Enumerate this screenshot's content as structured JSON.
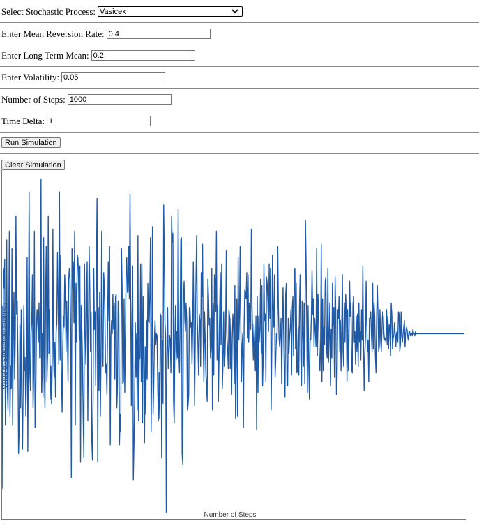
{
  "form": {
    "process_label": "Select Stochastic Process:",
    "process_value": "Vasicek",
    "mean_reversion_label": "Enter Mean Reversion Rate:",
    "mean_reversion_value": "0.4",
    "long_term_mean_label": "Enter Long Term Mean:",
    "long_term_mean_value": "0.2",
    "volatility_label": "Enter Volatility:",
    "volatility_value": "0.05",
    "steps_label": "Number of Steps:",
    "steps_value": "1000",
    "time_delta_label": "Time Delta:",
    "time_delta_value": "1"
  },
  "buttons": {
    "run": "Run Simulation",
    "clear": "Clear Simulation"
  },
  "chart_data": {
    "type": "line",
    "xlabel": "Number of Steps",
    "ylabel": "Value of Stochastic Process",
    "line_color": "#1f5aa6",
    "n_points": 700,
    "series": [
      {
        "values": [
          0.213,
          0.129,
          0.23,
          0.221,
          0.234,
          0.158,
          0.187,
          0.243,
          0.175,
          0.165,
          0.201,
          0.247,
          0.162,
          0.185,
          0.175,
          0.239,
          0.158,
          0.201,
          0.219,
          0.179,
          0.198,
          0.254,
          0.209,
          0.215,
          0.189,
          0.145,
          0.157,
          0.204,
          0.166,
          0.211,
          0.168,
          0.147,
          0.177,
          0.213,
          0.183,
          0.189,
          0.162,
          0.181,
          0.235,
          0.146,
          0.203,
          0.265,
          0.182,
          0.174,
          0.2,
          0.206,
          0.227,
          0.166,
          0.182,
          0.247,
          0.157,
          0.168,
          0.2,
          0.211,
          0.208,
          0.196,
          0.214,
          0.189,
          0.189,
          0.271,
          0.173,
          0.2,
          0.171,
          0.244,
          0.182,
          0.166,
          0.218,
          0.24,
          0.178,
          0.19,
          0.254,
          0.191,
          0.211,
          0.17,
          0.185,
          0.168,
          0.186,
          0.248,
          0.191,
          0.18,
          0.196,
          0.171,
          0.201,
          0.205,
          0.237,
          0.217,
          0.186,
          0.265,
          0.188,
          0.236,
          0.184,
          0.164,
          0.193,
          0.208,
          0.203,
          0.227,
          0.215,
          0.192,
          0.215,
          0.201,
          0.178,
          0.225,
          0.23,
          0.225,
          0.202,
          0.134,
          0.239,
          0.221,
          0.233,
          0.205,
          0.247,
          0.158,
          0.223,
          0.196,
          0.236,
          0.235,
          0.226,
          0.197,
          0.231,
          0.141,
          0.213,
          0.202,
          0.186,
          0.161,
          0.143,
          0.232,
          0.201,
          0.186,
          0.212,
          0.233,
          0.16,
          0.205,
          0.24,
          0.22,
          0.192,
          0.21,
          0.151,
          0.142,
          0.17,
          0.23,
          0.202,
          0.21,
          0.176,
          0.23,
          0.262,
          0.141,
          0.212,
          0.174,
          0.219,
          0.162,
          0.189,
          0.247,
          0.189,
          0.185,
          0.228,
          0.222,
          0.206,
          0.182,
          0.186,
          0.172,
          0.205,
          0.233,
          0.206,
          0.24,
          0.149,
          0.199,
          0.206,
          0.2,
          0.218,
          0.202,
          0.214,
          0.179,
          0.217,
          0.218,
          0.166,
          0.176,
          0.215,
          0.209,
          0.149,
          0.163,
          0.155,
          0.239,
          0.222,
          0.177,
          0.178,
          0.216,
          0.173,
          0.199,
          0.227,
          0.235,
          0.219,
          0.219,
          0.24,
          0.216,
          0.264,
          0.218,
          0.167,
          0.207,
          0.231,
          0.133,
          0.149,
          0.17,
          0.205,
          0.18,
          0.2,
          0.165,
          0.245,
          0.16,
          0.188,
          0.189,
          0.232,
          0.178,
          0.232,
          0.159,
          0.217,
          0.191,
          0.15,
          0.194,
          0.163,
          0.206,
          0.179,
          0.223,
          0.206,
          0.205,
          0.218,
          0.244,
          0.155,
          0.188,
          0.249,
          0.163,
          0.177,
          0.198,
          0.206,
          0.195,
          0.2,
          0.199,
          0.176,
          0.16,
          0.182,
          0.161,
          0.209,
          0.208,
          0.143,
          0.197,
          0.168,
          0.259,
          0.236,
          0.205,
          0.199,
          0.118,
          0.19,
          0.212,
          0.184,
          0.191,
          0.199,
          0.197,
          0.182,
          0.254,
          0.242,
          0.246,
          0.169,
          0.159,
          0.197,
          0.213,
          0.188,
          0.201,
          0.189,
          0.257,
          0.192,
          0.182,
          0.207,
          0.243,
          0.244,
          0.145,
          0.14,
          0.217,
          0.224,
          0.207,
          0.201,
          0.214,
          0.206,
          0.165,
          0.167,
          0.172,
          0.212,
          0.211,
          0.203,
          0.205,
          0.186,
          0.202,
          0.233,
          0.198,
          0.167,
          0.199,
          0.224,
          0.245,
          0.207,
          0.195,
          0.181,
          0.209,
          0.206,
          0.185,
          0.228,
          0.217,
          0.241,
          0.196,
          0.178,
          0.21,
          0.198,
          0.182,
          0.176,
          0.169,
          0.225,
          0.217,
          0.204,
          0.207,
          0.189,
          0.193,
          0.23,
          0.165,
          0.214,
          0.181,
          0.227,
          0.225,
          0.21,
          0.247,
          0.188,
          0.213,
          0.169,
          0.19,
          0.213,
          0.228,
          0.195,
          0.232,
          0.175,
          0.186,
          0.21,
          0.185,
          0.19,
          0.202,
          0.238,
          0.198,
          0.193,
          0.184,
          0.211,
          0.208,
          0.184,
          0.207,
          0.172,
          0.198,
          0.209,
          0.202,
          0.177,
          0.222,
          0.161,
          0.19,
          0.216,
          0.162,
          0.235,
          0.197,
          0.209,
          0.24,
          0.203,
          0.178,
          0.195,
          0.2,
          0.157,
          0.203,
          0.22,
          0.219,
          0.216,
          0.228,
          0.198,
          0.227,
          0.196,
          0.214,
          0.206,
          0.202,
          0.248,
          0.212,
          0.2,
          0.188,
          0.204,
          0.196,
          0.183,
          0.208,
          0.156,
          0.217,
          0.173,
          0.208,
          0.196,
          0.202,
          0.225,
          0.191,
          0.222,
          0.176,
          0.189,
          0.232,
          0.206,
          0.209,
          0.178,
          0.226,
          0.223,
          0.215,
          0.201,
          0.232,
          0.207,
          0.23,
          0.165,
          0.193,
          0.236,
          0.209,
          0.203,
          0.227,
          0.18,
          0.188,
          0.2,
          0.196,
          0.24,
          0.212,
          0.198,
          0.194,
          0.2,
          0.207,
          0.177,
          0.203,
          0.221,
          0.2,
          0.182,
          0.171,
          0.218,
          0.223,
          0.176,
          0.176,
          0.207,
          0.191,
          0.199,
          0.203,
          0.211,
          0.181,
          0.212,
          0.217,
          0.19,
          0.229,
          0.23,
          0.193,
          0.223,
          0.182,
          0.183,
          0.203,
          0.181,
          0.213,
          0.227,
          0.189,
          0.176,
          0.215,
          0.201,
          0.185,
          0.214,
          0.177,
          0.252,
          0.233,
          0.205,
          0.173,
          0.213,
          0.186,
          0.17,
          0.198,
          0.197,
          0.208,
          0.229,
          0.209,
          0.216,
          0.194,
          0.207,
          0.202,
          0.194,
          0.239,
          0.19,
          0.218,
          0.207,
          0.186,
          0.183,
          0.197,
          0.241,
          0.178,
          0.216,
          0.183,
          0.203,
          0.195,
          0.224,
          0.226,
          0.193,
          0.189,
          0.23,
          0.187,
          0.199,
          0.214,
          0.176,
          0.202,
          0.189,
          0.223,
          0.204,
          0.212,
          0.18,
          0.226,
          0.21,
          0.172,
          0.179,
          0.211,
          0.207,
          0.217,
          0.192,
          0.206,
          0.183,
          0.203,
          0.227,
          0.192,
          0.185,
          0.214,
          0.196,
          0.218,
          0.21,
          0.178,
          0.211,
          0.183,
          0.197,
          0.224,
          0.208,
          0.214,
          0.184,
          0.182,
          0.213,
          0.217,
          0.196,
          0.201,
          0.186,
          0.208,
          0.192,
          0.209,
          0.185,
          0.214,
          0.196,
          0.201,
          0.188,
          0.211,
          0.197,
          0.231,
          0.197,
          0.174,
          0.19,
          0.198,
          0.224,
          0.204,
          0.192,
          0.197,
          0.178,
          0.207,
          0.207,
          0.21,
          0.2,
          0.192,
          0.223,
          0.193,
          0.214,
          0.208,
          0.19,
          0.182,
          0.209,
          0.222,
          0.209,
          0.192,
          0.194,
          0.211,
          0.197,
          0.192,
          0.202,
          0.21,
          0.208,
          0.2,
          0.197,
          0.198,
          0.196,
          0.211,
          0.195,
          0.208,
          0.193,
          0.204,
          0.204,
          0.19,
          0.214,
          0.209,
          0.193,
          0.198,
          0.199,
          0.205,
          0.2,
          0.194,
          0.2,
          0.201,
          0.196,
          0.21,
          0.209,
          0.192,
          0.195,
          0.21,
          0.199,
          0.196,
          0.2,
          0.203,
          0.206,
          0.194,
          0.2,
          0.203,
          0.202,
          0.199,
          0.197,
          0.201,
          0.201,
          0.199,
          0.2,
          0.2,
          0.199,
          0.202,
          0.2,
          0.2,
          0.199,
          0.201,
          0.2,
          0.2,
          0.2,
          0.2,
          0.2,
          0.2,
          0.2,
          0.2,
          0.2,
          0.2,
          0.2,
          0.2,
          0.2,
          0.2,
          0.2,
          0.2,
          0.2,
          0.2,
          0.2,
          0.2,
          0.2,
          0.2,
          0.2,
          0.2,
          0.2,
          0.2,
          0.2,
          0.2,
          0.2,
          0.2,
          0.2,
          0.2,
          0.2,
          0.2,
          0.2,
          0.2,
          0.2,
          0.2,
          0.2,
          0.2,
          0.2,
          0.2,
          0.2,
          0.2,
          0.2,
          0.2,
          0.2,
          0.2,
          0.2,
          0.2,
          0.2,
          0.2,
          0.2,
          0.2,
          0.2,
          0.2,
          0.2,
          0.2,
          0.2,
          0.2,
          0.2,
          0.2,
          0.2,
          0.2,
          0.2,
          0.2,
          0.2,
          0.2,
          0.2,
          0.2,
          0.2,
          0.2,
          0.2,
          0.2
        ]
      }
    ],
    "ylim": [
      0.115,
      0.275
    ]
  }
}
